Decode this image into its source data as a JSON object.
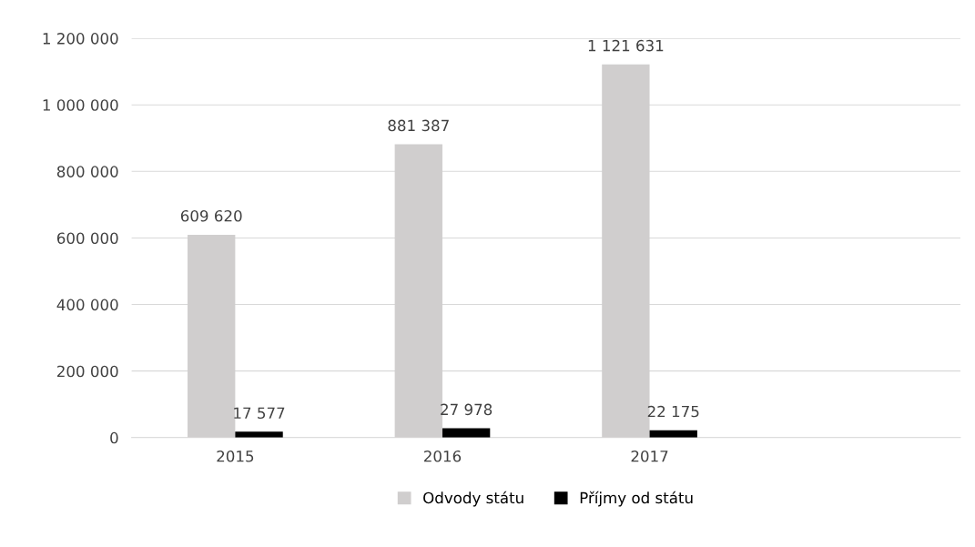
{
  "chart_data": {
    "type": "bar",
    "categories": [
      "2015",
      "2016",
      "2017",
      null
    ],
    "series": [
      {
        "name": "Odvody státu",
        "color": "#d0cece",
        "values": [
          609620,
          881387,
          1121631,
          null
        ],
        "value_labels": [
          "609 620",
          "881 387",
          "1 121 631",
          null
        ]
      },
      {
        "name": "Příjmy od státu",
        "color": "#000000",
        "values": [
          17577,
          27978,
          22175,
          null
        ],
        "value_labels": [
          "17 577",
          "27 978",
          "22 175",
          null
        ]
      }
    ],
    "ylim": [
      0,
      1200000
    ],
    "yticks": [
      0,
      {
        "value": 200000,
        "label": "200 000"
      },
      {
        "value": 400000,
        "label": "400 000"
      },
      {
        "value": 600000,
        "label": "600 000"
      },
      {
        "value": 800000,
        "label": "800 000"
      },
      {
        "value": 1000000,
        "label": "1 000 000"
      },
      {
        "value": 1200000,
        "label": "1 200 000"
      }
    ],
    "grid": "y",
    "legend": "bottom"
  }
}
